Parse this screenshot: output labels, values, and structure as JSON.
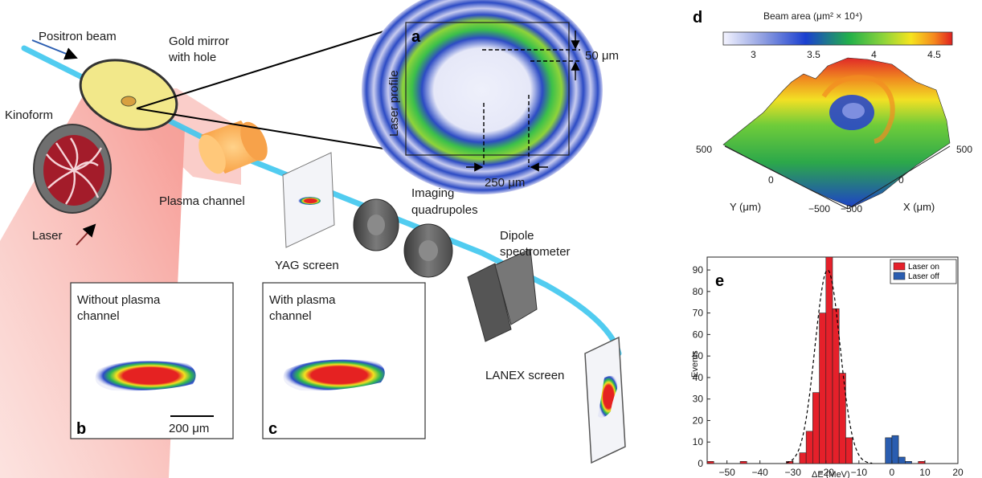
{
  "labels": {
    "positron_beam": "Positron beam",
    "gold_mirror_l1": "Gold mirror",
    "gold_mirror_l2": "with hole",
    "kinoform": "Kinoform",
    "laser": "Laser",
    "plasma_channel": "Plasma channel",
    "yag_screen": "YAG screen",
    "imaging_l1": "Imaging",
    "imaging_l2": "quadrupoles",
    "dipole_l1": "Dipole",
    "dipole_l2": "spectrometer",
    "lanex_screen": "LANEX screen",
    "laser_profile": "Laser profile",
    "dim_50": "50 μm",
    "dim_250": "250 μm",
    "without_plasma_l1": "Without plasma",
    "without_plasma_l2": "channel",
    "with_plasma_l1": "With plasma",
    "with_plasma_l2": "channel",
    "scale_bar": "200 μm"
  },
  "panel_letters": {
    "a": "a",
    "b": "b",
    "c": "c",
    "d": "d",
    "e": "e"
  },
  "colors": {
    "beam": "#3ec7ee",
    "laser": "#f2645a",
    "mirror": "#f2e88a",
    "plasma": "#f8b060",
    "quadrupole": "#5c5c5c",
    "laser_on": "#e5202a",
    "laser_off": "#2a5db0"
  },
  "panel_d": {
    "colorbar_title": "Beam area (μm² × 10⁴)",
    "colorbar_ticks": [
      "3",
      "3.5",
      "4",
      "4.5"
    ],
    "colorbar_range": [
      2.75,
      4.65
    ],
    "y_axis_label": "Y (μm)",
    "x_axis_label": "X (μm)",
    "y_ticks": [
      "500",
      "0",
      "−500"
    ],
    "x_ticks": [
      "−500",
      "0",
      "500"
    ]
  },
  "chart_data": {
    "type": "bar",
    "xlabel": "ΔE (MeV)",
    "ylabel": "Events",
    "xlim": [
      -56,
      20
    ],
    "ylim": [
      0,
      96
    ],
    "xticks": [
      -50,
      -40,
      -30,
      -20,
      -10,
      0,
      10,
      20
    ],
    "xtick_labels": [
      "−50",
      "−40",
      "−30",
      "−20",
      "−10",
      "0",
      "10",
      "20"
    ],
    "yticks": [
      0,
      10,
      20,
      30,
      40,
      50,
      60,
      70,
      80,
      90
    ],
    "bin_width": 2,
    "legend_position": "top-right",
    "series": [
      {
        "name": "Laser on",
        "bin_starts": [
          -56,
          -46,
          -32,
          -28,
          -26,
          -24,
          -22,
          -20,
          -18,
          -16,
          -14,
          8
        ],
        "values": [
          1,
          1,
          1,
          5,
          15,
          33,
          70,
          97,
          72,
          42,
          12,
          1
        ]
      },
      {
        "name": "Laser off",
        "bin_starts": [
          -2,
          0,
          2,
          4
        ],
        "values": [
          12,
          13,
          3,
          1
        ]
      }
    ],
    "fit_curve": {
      "style": "dashed",
      "mean": -19.5,
      "sigma": 3.8,
      "amplitude": 90
    }
  }
}
